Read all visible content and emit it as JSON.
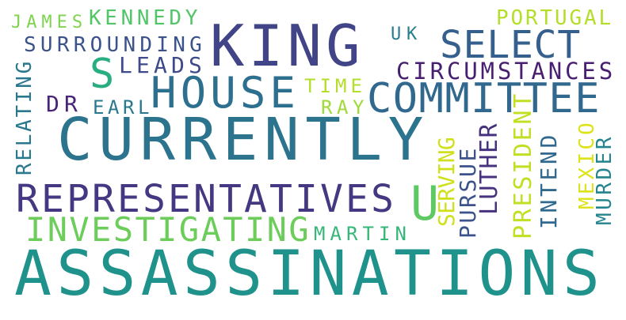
{
  "words": {
    "assassinations": {
      "text": "ASSASSINATIONS",
      "color": "#1f928c"
    },
    "currently": {
      "text": "CURRENTLY",
      "color": "#2c738e"
    },
    "king": {
      "text": "KING",
      "color": "#414487"
    },
    "representatives": {
      "text": "REPRESENTATIVES",
      "color": "#453781"
    },
    "house": {
      "text": "HOUSE",
      "color": "#2d6f8e"
    },
    "committee": {
      "text": "COMMITTEE",
      "color": "#31688e"
    },
    "select": {
      "text": "SELECT",
      "color": "#355f8d"
    },
    "investigating": {
      "text": "INVESTIGATING",
      "color": "#6ccd5a"
    },
    "circumstances": {
      "text": "CIRCUMSTANCES",
      "color": "#481f70"
    },
    "surrounding": {
      "text": "SURROUNDING",
      "color": "#3b528b"
    },
    "kennedy": {
      "text": "KENNEDY",
      "color": "#52c569"
    },
    "james": {
      "text": "JAMES",
      "color": "#7fd34e"
    },
    "leads": {
      "text": "LEADS",
      "color": "#3e4a89"
    },
    "s": {
      "text": "S",
      "color": "#28ae80"
    },
    "u": {
      "text": "U",
      "color": "#5ec962"
    },
    "earl": {
      "text": "EARL",
      "color": "#2a788e"
    },
    "dr": {
      "text": "DR",
      "color": "#482576"
    },
    "time": {
      "text": "TIME",
      "color": "#b5de2b"
    },
    "ray": {
      "text": "RAY",
      "color": "#a0da39"
    },
    "martin": {
      "text": "MARTIN",
      "color": "#35b779"
    },
    "portugal": {
      "text": "PORTUGAL",
      "color": "#b5de2b"
    },
    "uk": {
      "text": "UK",
      "color": "#287c8e"
    },
    "relating": {
      "text": "RELATING",
      "color": "#2a788e"
    },
    "serving": {
      "text": "SERVING",
      "color": "#d0e11c"
    },
    "pursue": {
      "text": "PURSUE",
      "color": "#3b528b"
    },
    "luther": {
      "text": "LUTHER",
      "color": "#46327e"
    },
    "president": {
      "text": "PRESIDENT",
      "color": "#c2df23"
    },
    "intend": {
      "text": "INTEND",
      "color": "#31688e"
    },
    "mexico": {
      "text": "MEXICO",
      "color": "#dde318"
    },
    "murder": {
      "text": "MURDER",
      "color": "#25858e"
    }
  }
}
